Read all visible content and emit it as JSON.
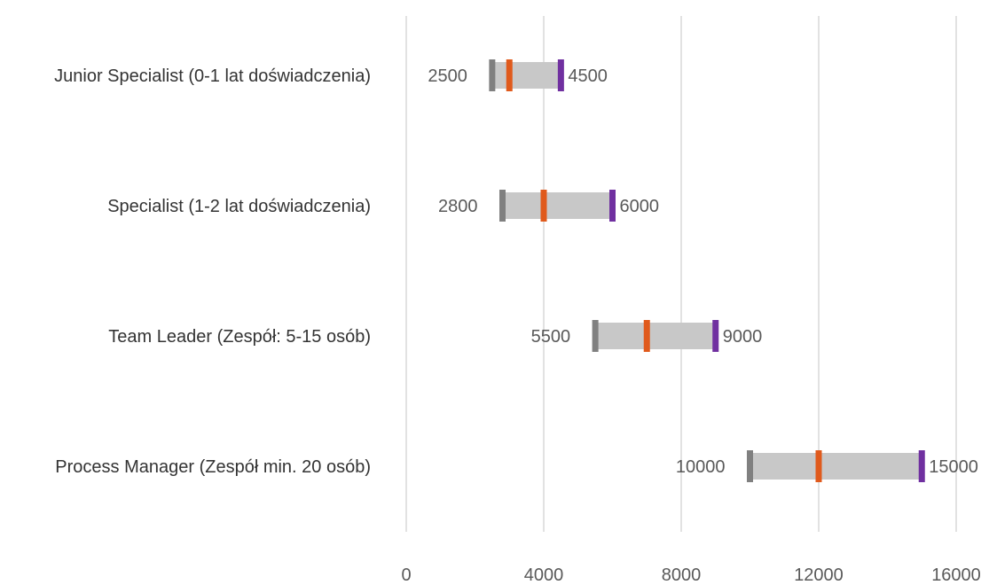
{
  "chart_data": {
    "type": "bar",
    "categories": [
      "Junior Specialist (0-1 lat doświadczenia)",
      "Specialist (1-2 lat doświadczenia)",
      "Team Leader (Zespół: 5-15 osób)",
      "Process Manager (Zespół min. 20 osób)"
    ],
    "series": [
      {
        "values": [
          2500,
          2800,
          5500,
          10000
        ],
        "color": "#808080"
      },
      {
        "values": [
          3000,
          4000,
          7000,
          12000
        ],
        "color": "#e05a1c"
      },
      {
        "values": [
          4500,
          6000,
          9000,
          15000
        ],
        "color": "#7030a0"
      }
    ],
    "range_bar_color": "#c8c8c8",
    "data_labels": {
      "low": [
        "2500",
        "2800",
        "5500",
        "10000"
      ],
      "high": [
        "4500",
        "6000",
        "9000",
        "15000"
      ]
    },
    "xlim": [
      0,
      16000
    ],
    "x_ticks": [
      0,
      4000,
      8000,
      12000,
      16000
    ],
    "x_tick_labels": [
      "0",
      "4000",
      "8000",
      "12000",
      "16000"
    ],
    "grid": true,
    "legend": "none",
    "title": "",
    "xlabel": "",
    "ylabel": ""
  }
}
